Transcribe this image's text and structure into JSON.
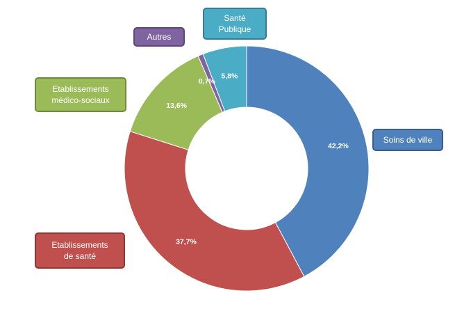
{
  "chart_data": {
    "type": "pie",
    "donut": true,
    "start": "top",
    "direction": "clockwise",
    "slices": [
      {
        "name": "Soins de ville",
        "lines": [
          "Soins de ville"
        ],
        "value": 42.2,
        "label": "42,2%",
        "color": "#4F81BD",
        "border": "#385D8A"
      },
      {
        "name": "Etablissements de santé",
        "lines": [
          "Etablissements",
          "de santé"
        ],
        "value": 37.7,
        "label": "37,7%",
        "color": "#C0504D",
        "border": "#8C3836"
      },
      {
        "name": "Etablissements médico-sociaux",
        "lines": [
          "Etablissements",
          "médico-sociaux"
        ],
        "value": 13.6,
        "label": "13,6%",
        "color": "#9BBB59",
        "border": "#71893F"
      },
      {
        "name": "Autres",
        "lines": [
          "Autres"
        ],
        "value": 0.7,
        "label": "0,7%",
        "color": "#8064A2",
        "border": "#5C4776"
      },
      {
        "name": "Santé Publique",
        "lines": [
          "Santé",
          "Publique"
        ],
        "value": 5.8,
        "label": "5,8%",
        "color": "#4BACC6",
        "border": "#357D91"
      }
    ]
  }
}
